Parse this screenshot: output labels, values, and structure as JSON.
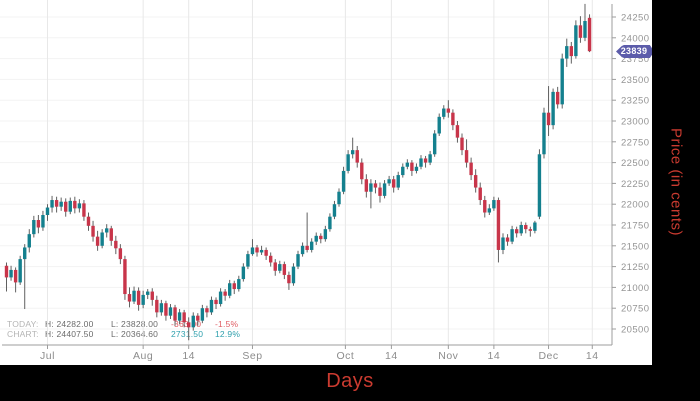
{
  "axis_titles": {
    "x": "Days",
    "y": "Price (in cents)",
    "color": "#cb3b30"
  },
  "price_badge": {
    "value": "23839",
    "color": "#5c5caa",
    "text_color": "#ffffff"
  },
  "legend": {
    "rows": [
      {
        "label": "TODAY:",
        "high": "H: 24282.00",
        "low": "L: 23828.00",
        "change": "-363.00",
        "pct": "-1.5%",
        "tone": "neg"
      },
      {
        "label": "CHART:",
        "high": "H: 24407.50",
        "low": "L: 20364.60",
        "change": "2731.50",
        "pct": "12.9%",
        "tone": "pos"
      }
    ]
  },
  "chart_data": {
    "type": "candlestick",
    "title": "",
    "xlabel": "Days",
    "ylabel": "Price (in cents)",
    "grid": true,
    "ylim": [
      20300,
      24460
    ],
    "y_ticks": [
      20500,
      20750,
      21000,
      21250,
      21500,
      21750,
      22000,
      22250,
      22500,
      22750,
      23000,
      23250,
      23500,
      23750,
      24000,
      24250
    ],
    "x_ticks": [
      {
        "label": "Jul",
        "index": 9
      },
      {
        "label": "Aug",
        "index": 30
      },
      {
        "label": "14",
        "index": 40
      },
      {
        "label": "Sep",
        "index": 54
      },
      {
        "label": "Oct",
        "index": 74.4
      },
      {
        "label": "14",
        "index": 84.5
      },
      {
        "label": "Nov",
        "index": 97
      },
      {
        "label": "14",
        "index": 107
      },
      {
        "label": "Dec",
        "index": 119
      },
      {
        "label": "14",
        "index": 128.6
      }
    ],
    "today": {
      "high": 24282.0,
      "low": 23828.0,
      "change": -363.0,
      "change_pct": "-1.5%",
      "last": 23839
    },
    "chart_range": {
      "high": 24407.5,
      "low": 20364.6,
      "range": 2731.5,
      "range_pct": "12.9%"
    },
    "up_color": "#14808e",
    "down_color": "#c8354a",
    "wick_color": "#606060",
    "candles_format": [
      "open",
      "high",
      "low",
      "close"
    ],
    "candles": [
      [
        21260,
        21300,
        20950,
        21120
      ],
      [
        21120,
        21260,
        21080,
        21210
      ],
      [
        21210,
        21240,
        20940,
        21060
      ],
      [
        21060,
        21380,
        21030,
        21340
      ],
      [
        21340,
        21520,
        20740,
        21480
      ],
      [
        21480,
        21700,
        21420,
        21640
      ],
      [
        21640,
        21860,
        21600,
        21810
      ],
      [
        21810,
        21870,
        21650,
        21720
      ],
      [
        21720,
        21920,
        21680,
        21870
      ],
      [
        21870,
        22000,
        21800,
        21960
      ],
      [
        21960,
        22100,
        21900,
        22050
      ],
      [
        22050,
        22090,
        21900,
        21970
      ],
      [
        21970,
        22080,
        21920,
        22030
      ],
      [
        22030,
        22070,
        21850,
        21910
      ],
      [
        21910,
        22080,
        21880,
        22040
      ],
      [
        22040,
        22090,
        21890,
        21950
      ],
      [
        21950,
        22060,
        21900,
        22010
      ],
      [
        22010,
        22050,
        21800,
        21850
      ],
      [
        21850,
        21900,
        21680,
        21740
      ],
      [
        21740,
        21800,
        21550,
        21610
      ],
      [
        21610,
        21680,
        21440,
        21500
      ],
      [
        21500,
        21700,
        21470,
        21660
      ],
      [
        21660,
        21760,
        21600,
        21710
      ],
      [
        21710,
        21740,
        21500,
        21560
      ],
      [
        21560,
        21620,
        21400,
        21470
      ],
      [
        21470,
        21520,
        21280,
        21340
      ],
      [
        21340,
        21380,
        20850,
        20920
      ],
      [
        20920,
        21000,
        20760,
        20830
      ],
      [
        20830,
        21010,
        20800,
        20960
      ],
      [
        20960,
        21000,
        20720,
        20790
      ],
      [
        20790,
        20960,
        20750,
        20910
      ],
      [
        20910,
        20980,
        20860,
        20950
      ],
      [
        20950,
        20990,
        20780,
        20850
      ],
      [
        20850,
        20900,
        20640,
        20700
      ],
      [
        20700,
        20850,
        20660,
        20810
      ],
      [
        20810,
        20840,
        20600,
        20660
      ],
      [
        20660,
        20800,
        20620,
        20760
      ],
      [
        20760,
        20790,
        20540,
        20600
      ],
      [
        20600,
        20740,
        20560,
        20700
      ],
      [
        20700,
        20730,
        20520,
        20580
      ],
      [
        20580,
        20640,
        20364.6,
        20520
      ],
      [
        20520,
        20700,
        20480,
        20660
      ],
      [
        20660,
        20690,
        20540,
        20600
      ],
      [
        20600,
        20790,
        20570,
        20750
      ],
      [
        20750,
        20780,
        20640,
        20700
      ],
      [
        20700,
        20890,
        20670,
        20850
      ],
      [
        20850,
        20880,
        20740,
        20800
      ],
      [
        20800,
        20990,
        20770,
        20950
      ],
      [
        20950,
        20980,
        20840,
        20900
      ],
      [
        20900,
        21090,
        20870,
        21050
      ],
      [
        21050,
        21080,
        20920,
        20980
      ],
      [
        20980,
        21140,
        20950,
        21100
      ],
      [
        21100,
        21290,
        21070,
        21250
      ],
      [
        21250,
        21440,
        21220,
        21400
      ],
      [
        21400,
        21580,
        21380,
        21480
      ],
      [
        21480,
        21510,
        21370,
        21420
      ],
      [
        21420,
        21500,
        21390,
        21450
      ],
      [
        21450,
        21480,
        21330,
        21380
      ],
      [
        21380,
        21420,
        21250,
        21300
      ],
      [
        21300,
        21340,
        21140,
        21200
      ],
      [
        21200,
        21320,
        21170,
        21280
      ],
      [
        21280,
        21310,
        21100,
        21150
      ],
      [
        21150,
        21190,
        20970,
        21050
      ],
      [
        21050,
        21290,
        21020,
        21250
      ],
      [
        21250,
        21440,
        21220,
        21400
      ],
      [
        21400,
        21540,
        21370,
        21500
      ],
      [
        21500,
        21900,
        21420,
        21450
      ],
      [
        21450,
        21590,
        21420,
        21550
      ],
      [
        21550,
        21660,
        21510,
        21620
      ],
      [
        21620,
        21650,
        21530,
        21580
      ],
      [
        21580,
        21740,
        21550,
        21700
      ],
      [
        21700,
        21890,
        21670,
        21850
      ],
      [
        21850,
        22040,
        21820,
        22000
      ],
      [
        22000,
        22190,
        21970,
        22150
      ],
      [
        22150,
        22450,
        22120,
        22400
      ],
      [
        22400,
        22650,
        22370,
        22600
      ],
      [
        22600,
        22800,
        22550,
        22650
      ],
      [
        22650,
        22700,
        22440,
        22500
      ],
      [
        22500,
        22550,
        22240,
        22300
      ],
      [
        22300,
        22360,
        22080,
        22150
      ],
      [
        22150,
        22300,
        21950,
        22250
      ],
      [
        22250,
        22290,
        22130,
        22200
      ],
      [
        22200,
        22260,
        22020,
        22100
      ],
      [
        22100,
        22290,
        22070,
        22250
      ],
      [
        22250,
        22340,
        22220,
        22300
      ],
      [
        22300,
        22340,
        22140,
        22200
      ],
      [
        22200,
        22390,
        22170,
        22350
      ],
      [
        22350,
        22490,
        22320,
        22450
      ],
      [
        22450,
        22540,
        22420,
        22500
      ],
      [
        22500,
        22530,
        22340,
        22400
      ],
      [
        22400,
        22490,
        22370,
        22450
      ],
      [
        22450,
        22590,
        22420,
        22550
      ],
      [
        22550,
        22580,
        22440,
        22500
      ],
      [
        22500,
        22640,
        22470,
        22600
      ],
      [
        22600,
        22890,
        22570,
        22850
      ],
      [
        22850,
        23090,
        22820,
        23050
      ],
      [
        23050,
        23190,
        23020,
        23150
      ],
      [
        23150,
        23250,
        23040,
        23100
      ],
      [
        23100,
        23140,
        22890,
        22950
      ],
      [
        22950,
        23000,
        22740,
        22800
      ],
      [
        22800,
        22850,
        22590,
        22650
      ],
      [
        22650,
        22780,
        22440,
        22500
      ],
      [
        22500,
        22560,
        22290,
        22350
      ],
      [
        22350,
        22420,
        22140,
        22200
      ],
      [
        22200,
        22260,
        21990,
        22050
      ],
      [
        22050,
        22100,
        21840,
        21900
      ],
      [
        21900,
        22000,
        21870,
        21950
      ],
      [
        21950,
        22090,
        21920,
        22050
      ],
      [
        22050,
        22080,
        21300,
        21450
      ],
      [
        21450,
        21650,
        21400,
        21600
      ],
      [
        21600,
        21640,
        21500,
        21550
      ],
      [
        21550,
        21740,
        21520,
        21700
      ],
      [
        21700,
        21730,
        21600,
        21650
      ],
      [
        21650,
        21790,
        21620,
        21750
      ],
      [
        21750,
        21780,
        21650,
        21700
      ],
      [
        21700,
        21730,
        21610,
        21680
      ],
      [
        21680,
        21800,
        21650,
        21780
      ],
      [
        21850,
        22660,
        21820,
        22600
      ],
      [
        22600,
        23160,
        22550,
        23100
      ],
      [
        23100,
        23420,
        22820,
        22950
      ],
      [
        22950,
        23390,
        22900,
        23350
      ],
      [
        23350,
        23410,
        23150,
        23200
      ],
      [
        23200,
        23810,
        23150,
        23750
      ],
      [
        23750,
        23990,
        23650,
        23900
      ],
      [
        23900,
        23950,
        23690,
        23780
      ],
      [
        23780,
        24210,
        23750,
        24150
      ],
      [
        24150,
        24260,
        23940,
        24000
      ],
      [
        24000,
        24407.5,
        23960,
        24202
      ],
      [
        24240,
        24282,
        23828,
        23839
      ]
    ]
  }
}
